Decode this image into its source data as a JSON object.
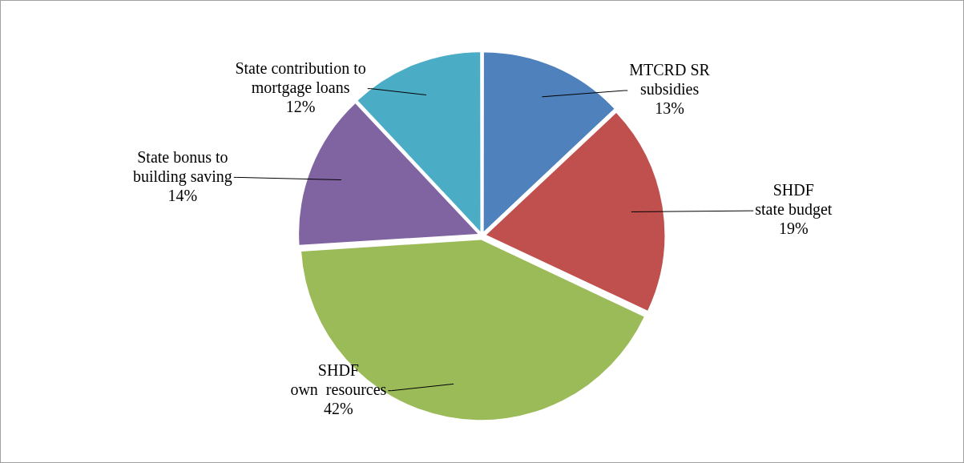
{
  "chart_data": {
    "type": "pie",
    "categories": [
      "MTCRD SR\nsubsidies",
      "SHDF\nstate budget",
      "SHDF\nown  resources",
      "State bonus to\nbuilding saving",
      "State contribution to\nmortgage loans"
    ],
    "values": [
      13,
      19,
      42,
      14,
      12
    ],
    "colors": [
      "#4f81bd",
      "#c0504d",
      "#9bbb59",
      "#8064a2",
      "#4bacc6"
    ],
    "value_labels": [
      "13%",
      "19%",
      "42%",
      "14%",
      "12%"
    ],
    "legend": false
  }
}
